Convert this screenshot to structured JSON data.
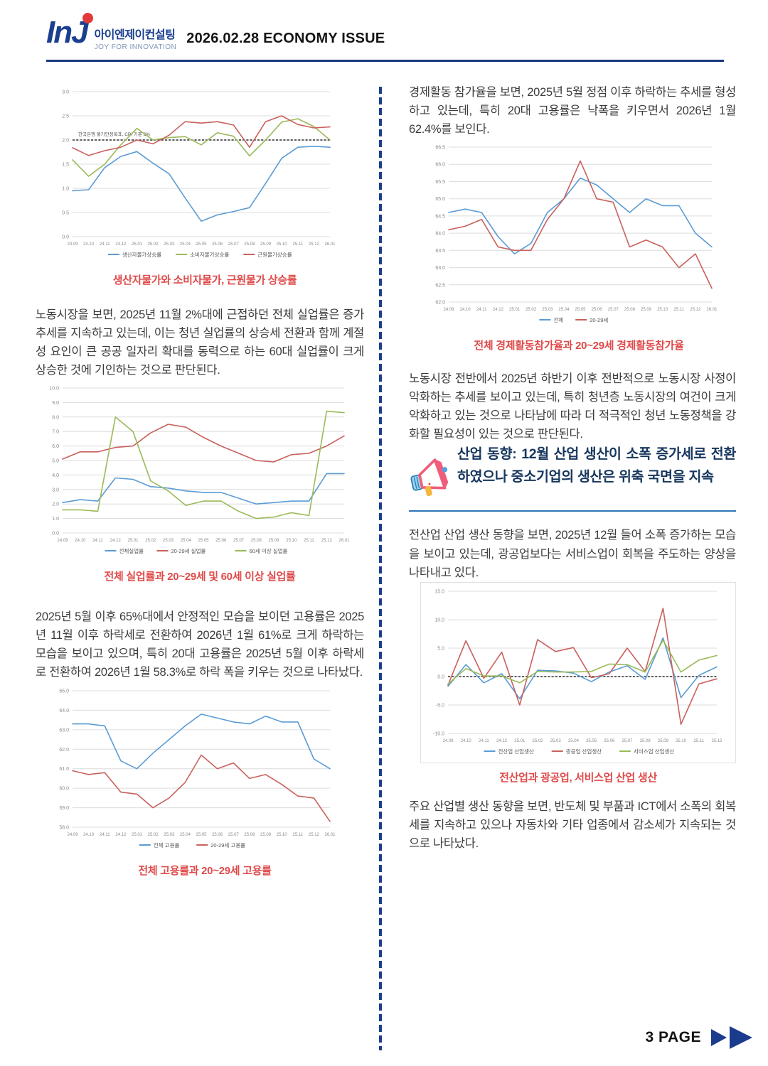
{
  "header": {
    "logo_main": "InJ",
    "logo_kr": "아이엔제이컨설팅",
    "logo_sub": "JOY FOR INNOVATION",
    "title": "2026.02.28 ECONOMY ISSUE"
  },
  "footer": {
    "page_label": "3 PAGE"
  },
  "colors": {
    "accent_navy": "#17387e",
    "caption_red": "#e04a4a",
    "series_blue": "#5b9bd5",
    "series_red": "#c9605c",
    "series_green": "#9aba58"
  },
  "left": {
    "p1": "노동시장을 보면, 2025년 11월 2%대에 근접하던 전체 실업률은 증가추세를 지속하고 있는데, 이는 청년 실업률의 상승세 전환과 함께 계절성 요인이 큰 공공 일자리 확대를 동력으로 하는 60대 실업률이 크게 상승한 것에 기인하는 것으로 판단된다.",
    "p2": "2025년 5월 이후 65%대에서 안정적인 모습을 보이던 고용률은 2025년 11월 이후 하락세로 전환하여 2026년 1월 61%로 크게 하락하는 모습을 보이고 있으며, 특히 20대 고용률은 2025년 5월 이후 하락세로 전환하여 2026년 1월 58.3%로 하락 폭을 키우는 것으로 나타났다."
  },
  "right": {
    "p1": "경제활동 참가율을 보면, 2025년 5월 정점 이후 하락하는 추세를 형성하고 있는데, 특히 20대 고용률은 낙폭을 키우면서 2026년 1월 62.4%를 보인다.",
    "p2": "노동시장 전반에서 2025년 하반기 이후 전반적으로 노동시장 사정이 악화하는 추세를 보이고 있는데, 특히 청년층 노동시장의 여건이 크게 악화하고 있는 것으로 나타남에 따라 더 적극적인 청년 노동정책을 강화할 필요성이 있는 것으로 판단된다.",
    "heading": "산업 동향: 12월 산업 생산이 소폭 증가세로 전환하였으나 중소기업의 생산은 위축 국면을 지속",
    "p3": "전산업 산업 생산 동향을 보면, 2025년 12월 들어 소폭 증가하는 모습을 보이고 있는데, 광공업보다는 서비스업이 회복을 주도하는 양상을 나타내고 있다.",
    "p4": "주요 산업별 생산 동향을 보면, 반도체 및 부품과 ICT에서 소폭의 회복세를 지속하고 있으나 자동차와 기타 업종에서 감소세가 지속되는 것으로 나타났다."
  },
  "charts": [
    {
      "type": "line",
      "caption": "생산자물가와 소비자물가, 근원물가 상승률",
      "y_min": 0.0,
      "y_max": 3.0,
      "y_step": 0.5,
      "y_dec": 1,
      "ref": 2.0,
      "ref_label": "한국은행 물가안정목표, CPI 기준 2%",
      "x": [
        "24.09",
        "24.10",
        "24.11",
        "24.12",
        "25.01",
        "25.02",
        "25.03",
        "25.04",
        "25.05",
        "25.06",
        "25.07",
        "25.08",
        "25.09",
        "25.10",
        "25.11",
        "25.12",
        "26.01"
      ],
      "series": [
        {
          "name": "생산자물가상승률",
          "color": "#5b9bd5",
          "values": [
            0.95,
            0.97,
            1.43,
            1.66,
            1.76,
            1.52,
            1.3,
            0.8,
            0.32,
            0.45,
            0.52,
            0.6,
            1.1,
            1.62,
            1.85,
            1.87,
            1.85
          ]
        },
        {
          "name": "소비자물가상승률",
          "color": "#9aba58",
          "values": [
            1.59,
            1.25,
            1.5,
            1.9,
            2.24,
            2.0,
            2.05,
            2.07,
            1.9,
            2.15,
            2.08,
            1.67,
            2.0,
            2.37,
            2.44,
            2.28,
            2.0
          ]
        },
        {
          "name": "근원물가상승률",
          "color": "#c9605c",
          "values": [
            1.84,
            1.68,
            1.78,
            1.85,
            2.0,
            1.92,
            2.1,
            2.38,
            2.35,
            2.38,
            2.31,
            1.85,
            2.38,
            2.5,
            2.32,
            2.25,
            2.27
          ]
        }
      ]
    },
    {
      "type": "line",
      "caption": "전체 실업률과 20~29세 및 60세 이상 실업률",
      "y_min": 0.0,
      "y_max": 10.0,
      "y_step": 1.0,
      "y_dec": 1,
      "ref": null,
      "ref_label": null,
      "x": [
        "24.09",
        "24.10",
        "24.11",
        "24.12",
        "25.01",
        "25.02",
        "25.03",
        "25.04",
        "25.05",
        "25.06",
        "25.07",
        "25.08",
        "25.09",
        "25.10",
        "25.11",
        "25.12",
        "26.01"
      ],
      "series": [
        {
          "name": "전체실업률",
          "color": "#5b9bd5",
          "values": [
            2.1,
            2.3,
            2.2,
            3.8,
            3.7,
            3.2,
            3.1,
            2.9,
            2.8,
            2.8,
            2.4,
            2.0,
            2.1,
            2.2,
            2.2,
            4.1,
            4.1
          ]
        },
        {
          "name": "20-29세 실업률",
          "color": "#c9605c",
          "values": [
            5.1,
            5.6,
            5.6,
            5.9,
            6.0,
            6.9,
            7.5,
            7.3,
            6.6,
            6.0,
            5.5,
            5.0,
            4.9,
            5.4,
            5.5,
            6.0,
            6.7
          ]
        },
        {
          "name": "60세 이상 실업률",
          "color": "#9aba58",
          "values": [
            1.6,
            1.6,
            1.5,
            8.0,
            7.0,
            3.6,
            2.9,
            1.9,
            2.2,
            2.2,
            1.5,
            1.0,
            1.1,
            1.4,
            1.2,
            8.4,
            8.3
          ]
        }
      ]
    },
    {
      "type": "line",
      "caption": "전체 고용률과 20~29세 고용률",
      "y_min": 58.0,
      "y_max": 65.0,
      "y_step": 1.0,
      "y_dec": 1,
      "ref": null,
      "ref_label": null,
      "x": [
        "24.09",
        "24.10",
        "24.11",
        "24.12",
        "25.01",
        "25.02",
        "25.03",
        "25.04",
        "25.05",
        "25.06",
        "25.07",
        "25.08",
        "25.09",
        "25.10",
        "25.11",
        "25.12",
        "26.01"
      ],
      "series": [
        {
          "name": "전체 고용률",
          "color": "#5b9bd5",
          "values": [
            63.3,
            63.3,
            63.2,
            61.4,
            61.0,
            61.8,
            62.5,
            63.2,
            63.8,
            63.6,
            63.4,
            63.3,
            63.7,
            63.4,
            63.4,
            61.5,
            61.0
          ]
        },
        {
          "name": "20-29세 고용률",
          "color": "#c9605c",
          "values": [
            60.9,
            60.7,
            60.8,
            59.8,
            59.7,
            59.0,
            59.5,
            60.3,
            61.7,
            61.0,
            61.3,
            60.5,
            60.7,
            60.2,
            59.6,
            59.5,
            58.3
          ]
        }
      ]
    },
    {
      "type": "line",
      "caption": "전체 경제활동참가율과 20~29세 경제활동참가율",
      "y_min": 62.0,
      "y_max": 66.5,
      "y_step": 0.5,
      "y_dec": 1,
      "ref": null,
      "ref_label": null,
      "x": [
        "24.09",
        "24.10",
        "24.11",
        "24.12",
        "25.01",
        "25.02",
        "25.03",
        "25.04",
        "25.05",
        "25.06",
        "25.07",
        "25.08",
        "25.09",
        "25.10",
        "25.11",
        "25.12",
        "26.01"
      ],
      "series": [
        {
          "name": "전체",
          "color": "#5b9bd5",
          "values": [
            64.6,
            64.7,
            64.6,
            63.9,
            63.4,
            63.7,
            64.6,
            65.0,
            65.6,
            65.4,
            65.0,
            64.6,
            65.0,
            64.8,
            64.8,
            64.0,
            63.6
          ]
        },
        {
          "name": "20-29세",
          "color": "#c9605c",
          "values": [
            64.1,
            64.2,
            64.4,
            63.6,
            63.5,
            63.5,
            64.4,
            65.0,
            66.1,
            65.0,
            64.9,
            63.6,
            63.8,
            63.6,
            63.0,
            63.4,
            62.4
          ]
        }
      ]
    },
    {
      "type": "line",
      "caption": "전산업과 광공업, 서비스업 산업 생산",
      "y_min": -10.0,
      "y_max": 15.0,
      "y_step": 5.0,
      "y_dec": 1,
      "ref": 0.0,
      "ref_label": null,
      "border": true,
      "x": [
        "24.09",
        "24.10",
        "24.11",
        "24.12",
        "25.01",
        "25.02",
        "25.03",
        "25.04",
        "25.05",
        "25.06",
        "25.07",
        "25.08",
        "25.09",
        "25.10",
        "25.11",
        "25.12"
      ],
      "series": [
        {
          "name": "전산업 산업생산",
          "color": "#5b9bd5",
          "values": [
            -1.7,
            2.1,
            -1.1,
            0.5,
            -3.9,
            1.1,
            1.0,
            0.6,
            -0.9,
            0.8,
            1.9,
            -0.5,
            6.8,
            -3.7,
            0.2,
            1.7
          ]
        },
        {
          "name": "광공업 산업생산",
          "color": "#c9605c",
          "values": [
            -1.5,
            6.3,
            -0.3,
            4.3,
            -5.0,
            6.5,
            4.4,
            5.1,
            -0.2,
            0.5,
            5.0,
            0.9,
            12.0,
            -8.4,
            -1.3,
            -0.4
          ]
        },
        {
          "name": "서비스업 산업생산",
          "color": "#9aba58",
          "values": [
            -1.3,
            1.4,
            0.1,
            0.1,
            -1.1,
            0.9,
            0.8,
            0.8,
            0.9,
            2.2,
            2.1,
            0.8,
            6.4,
            0.8,
            2.9,
            3.7
          ]
        }
      ]
    }
  ]
}
